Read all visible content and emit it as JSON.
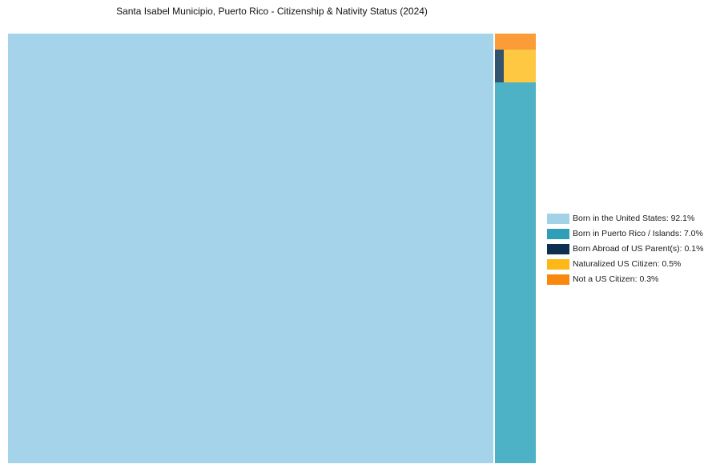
{
  "chart_data": {
    "type": "treemap",
    "title": "Santa Isabel Municipio, Puerto Rico - Citizenship & Nativity Status (2024)",
    "legend_position": "right",
    "grid": false,
    "categories": [
      "Born in the United States",
      "Born in Puerto Rico / Islands",
      "Born Abroad of US Parent(s)",
      "Naturalized US Citizen",
      "Not a US Citizen"
    ],
    "values": [
      92.1,
      7.0,
      0.1,
      0.5,
      0.3
    ],
    "segments": [
      {
        "label": "Born in the United States",
        "value": 92.1,
        "pct": "92.1%",
        "fill": "#a5d3e9",
        "legend_color": "#a2d2e8"
      },
      {
        "label": "Born in Puerto Rico / Islands",
        "value": 7.0,
        "pct": "7.0%",
        "fill": "#4db2c5",
        "legend_color": "#2e9fb7"
      },
      {
        "label": "Born Abroad of US Parent(s)",
        "value": 0.1,
        "pct": "0.1%",
        "fill": "#33546e",
        "legend_color": "#0e3050"
      },
      {
        "label": "Naturalized US Citizen",
        "value": 0.5,
        "pct": "0.5%",
        "fill": "#fec843",
        "legend_color": "#fdb817"
      },
      {
        "label": "Not a US Citizen",
        "value": 0.3,
        "pct": "0.3%",
        "fill": "#fa9c38",
        "legend_color": "#f8880e"
      }
    ]
  }
}
